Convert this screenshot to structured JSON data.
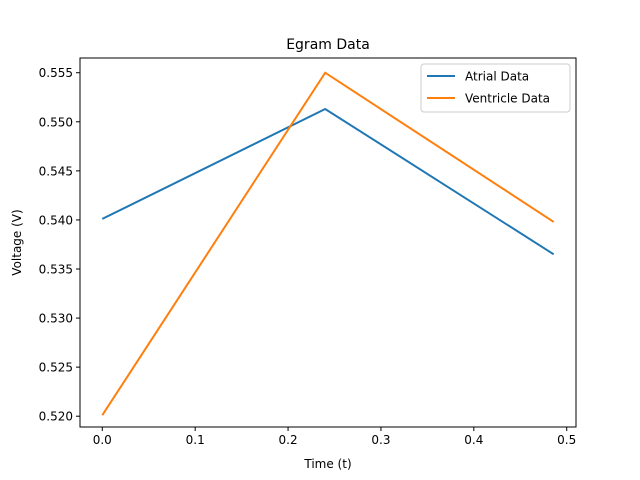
{
  "chart_data": {
    "type": "line",
    "title": "Egram Data",
    "xlabel": "Time (t)",
    "ylabel": "Voltage (V)",
    "xlim": [
      -0.024,
      0.51
    ],
    "ylim": [
      0.5189,
      0.5565
    ],
    "xticks": [
      0.0,
      0.1,
      0.2,
      0.3,
      0.4,
      0.5
    ],
    "xtick_labels": [
      "0.0",
      "0.1",
      "0.2",
      "0.3",
      "0.4",
      "0.5"
    ],
    "yticks": [
      0.52,
      0.525,
      0.53,
      0.535,
      0.54,
      0.545,
      0.55,
      0.555
    ],
    "ytick_labels": [
      "0.520",
      "0.525",
      "0.530",
      "0.535",
      "0.540",
      "0.545",
      "0.550",
      "0.555"
    ],
    "grid": false,
    "legend_position": "top-right",
    "series": [
      {
        "name": "Atrial Data",
        "color": "#1f77b4",
        "x": [
          0.0,
          0.24,
          0.486
        ],
        "y": [
          0.5401,
          0.5513,
          0.5365
        ]
      },
      {
        "name": "Ventricle Data",
        "color": "#ff7f0e",
        "x": [
          0.0,
          0.24,
          0.486
        ],
        "y": [
          0.5201,
          0.555,
          0.5398
        ]
      }
    ]
  }
}
